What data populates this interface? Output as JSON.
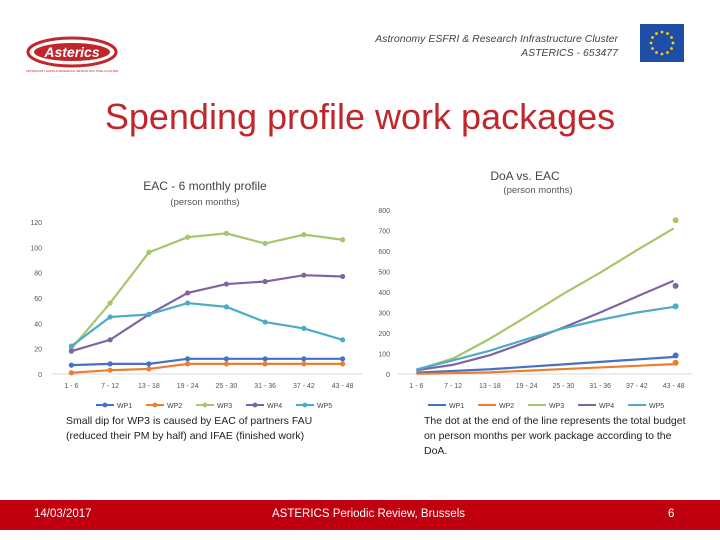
{
  "header": {
    "line1": "Astronomy ESFRI & Research Infrastructure Cluster",
    "line2": "ASTERICS - 653477",
    "logo_text": "Asterics",
    "logo_tagline": "ASTRONOMY ESFRI & RESEARCH INFRASTRUCTURE CLUSTER"
  },
  "slide_title": "Spending profile work packages",
  "colors": {
    "WP1": "#4472c4",
    "WP2": "#ed7d31",
    "WP3": "#a5c66a",
    "WP4": "#8064a2",
    "WP5": "#4bacc6",
    "brand_red": "#c0000f"
  },
  "chart_data": [
    {
      "type": "line",
      "title": "EAC - 6 monthly profile",
      "subtitle": "(person months)",
      "categories": [
        "1 - 6",
        "7 - 12",
        "13 - 18",
        "19 - 24",
        "25 - 30",
        "31 - 36",
        "37 - 42",
        "43 - 48"
      ],
      "ylim": [
        0,
        120
      ],
      "yticks": [
        "0",
        "20",
        "40",
        "60",
        "80",
        "100",
        "120"
      ],
      "grid": false,
      "legend": "bottom",
      "series": [
        {
          "name": "WP1",
          "values": [
            7,
            8,
            8,
            12,
            12,
            12,
            12,
            12
          ]
        },
        {
          "name": "WP2",
          "values": [
            1,
            3,
            4,
            8,
            8,
            8,
            8,
            8
          ]
        },
        {
          "name": "WP3",
          "values": [
            20,
            56,
            96,
            108,
            111,
            103,
            110,
            106
          ]
        },
        {
          "name": "WP4",
          "values": [
            18,
            27,
            47,
            64,
            71,
            73,
            78,
            77
          ]
        },
        {
          "name": "WP5",
          "values": [
            22,
            45,
            47,
            56,
            53,
            41,
            36,
            27
          ]
        }
      ]
    },
    {
      "type": "line",
      "title": "DoA vs. EAC",
      "subtitle": "(person months)",
      "categories": [
        "1 - 6",
        "7 - 12",
        "13 - 18",
        "19 - 24",
        "25 - 30",
        "31 - 36",
        "37 - 42",
        "43 - 48"
      ],
      "ylim": [
        0,
        800
      ],
      "yticks": [
        "0",
        "100",
        "200",
        "300",
        "400",
        "500",
        "600",
        "700",
        "800"
      ],
      "grid": false,
      "legend": "bottom",
      "series": [
        {
          "name": "WP1",
          "values": [
            7,
            15,
            23,
            35,
            47,
            59,
            71,
            83
          ],
          "doa": 90
        },
        {
          "name": "WP2",
          "values": [
            1,
            4,
            8,
            16,
            24,
            32,
            40,
            48
          ],
          "doa": 55
        },
        {
          "name": "WP3",
          "values": [
            20,
            76,
            172,
            280,
            391,
            494,
            604,
            710
          ],
          "doa": 750
        },
        {
          "name": "WP4",
          "values": [
            18,
            45,
            92,
            156,
            227,
            300,
            378,
            455
          ],
          "doa": 430
        },
        {
          "name": "WP5",
          "values": [
            22,
            67,
            114,
            170,
            223,
            264,
            300,
            327
          ],
          "doa": 330
        }
      ]
    }
  ],
  "notes": {
    "left": "Small dip for WP3 is caused by EAC of partners FAU (reduced their PM by half) and IFAE (finished work)",
    "right": "The dot at the end of the line represents the total budget on person months per work package according to the DoA."
  },
  "footer": {
    "date": "14/03/2017",
    "event": "ASTERICS Periodic Review, Brussels",
    "page": "6"
  }
}
